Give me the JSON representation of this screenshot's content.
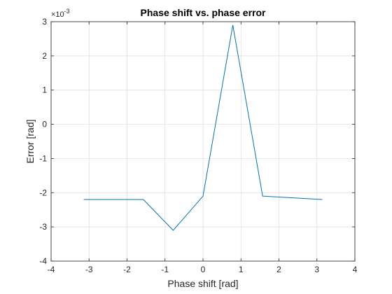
{
  "chart_data": {
    "type": "line",
    "title": "Phase shift vs. phase error",
    "xlabel": "Phase shift [rad]",
    "ylabel": "Error [rad]",
    "xlim": [
      -4,
      4
    ],
    "ylim": [
      -4,
      3
    ],
    "x_ticks": [
      "-4",
      "-3",
      "-2",
      "-1",
      "0",
      "1",
      "2",
      "3",
      "4"
    ],
    "y_ticks": [
      "-4",
      "-3",
      "-2",
      "-1",
      "0",
      "1",
      "2",
      "3"
    ],
    "y_multiplier": {
      "base": "×10",
      "exponent": "-3"
    },
    "grid": true,
    "series": [
      {
        "color": "#0072bd",
        "x": [
          -3.1416,
          -1.5708,
          -0.7854,
          0,
          0.7854,
          1.5708,
          3.1416
        ],
        "y": [
          -2.2,
          -2.2,
          -3.1,
          -2.1,
          2.9,
          -2.1,
          -2.2
        ]
      }
    ]
  }
}
